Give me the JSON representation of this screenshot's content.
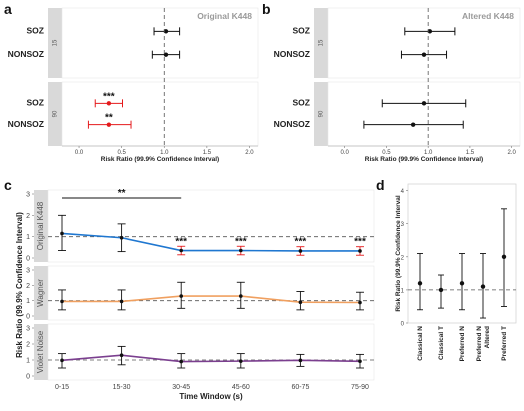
{
  "panel_labels": {
    "a": "a",
    "b": "b",
    "c": "c",
    "d": "d"
  },
  "chart_data": [
    {
      "id": "a",
      "type": "scatter",
      "subtype": "forest",
      "inset_title": "Original K448",
      "xlabel": "Risk Ratio (99.9% Confidence Interval)",
      "xlim": [
        -0.2,
        2.1
      ],
      "xticks": [
        "0.0",
        "0.5",
        "1.0",
        "1.5",
        "2.0"
      ],
      "reference_line": 1.0,
      "facets": [
        {
          "strip": "15",
          "rows": [
            {
              "label": "SOZ",
              "est": 1.02,
              "lo": 0.88,
              "hi": 1.18,
              "sig": "",
              "color": "#111111"
            },
            {
              "label": "NONSOZ",
              "est": 1.02,
              "lo": 0.86,
              "hi": 1.18,
              "sig": "",
              "color": "#111111"
            }
          ]
        },
        {
          "strip": "90",
          "rows": [
            {
              "label": "SOZ",
              "est": 0.35,
              "lo": 0.19,
              "hi": 0.51,
              "sig": "***",
              "color": "#e41a1c"
            },
            {
              "label": "NONSOZ",
              "est": 0.35,
              "lo": 0.11,
              "hi": 0.61,
              "sig": "**",
              "color": "#e41a1c"
            }
          ]
        }
      ]
    },
    {
      "id": "b",
      "type": "scatter",
      "subtype": "forest",
      "inset_title": "Altered K448",
      "xlabel": "Risk Ratio (99.9% Confidence Interval)",
      "xlim": [
        -0.2,
        2.1
      ],
      "xticks": [
        "0.0",
        "0.5",
        "1.0",
        "1.5",
        "2.0"
      ],
      "reference_line": 1.0,
      "facets": [
        {
          "strip": "15",
          "rows": [
            {
              "label": "SOZ",
              "est": 1.02,
              "lo": 0.72,
              "hi": 1.32,
              "sig": "",
              "color": "#111111"
            },
            {
              "label": "NONSOZ",
              "est": 0.95,
              "lo": 0.68,
              "hi": 1.22,
              "sig": "",
              "color": "#111111"
            }
          ]
        },
        {
          "strip": "90",
          "rows": [
            {
              "label": "SOZ",
              "est": 0.95,
              "lo": 0.45,
              "hi": 1.45,
              "sig": "",
              "color": "#111111"
            },
            {
              "label": "NONSOZ",
              "est": 0.82,
              "lo": 0.23,
              "hi": 1.42,
              "sig": "",
              "color": "#111111"
            }
          ]
        }
      ]
    },
    {
      "id": "c",
      "type": "line",
      "xlabel": "Time Window (s)",
      "ylabel": "Risk Ratio (99.9% Confidence Interval)",
      "categories": [
        "0-15",
        "15-30",
        "30-45",
        "45-60",
        "60-75",
        "75-90"
      ],
      "ylim": [
        0,
        3
      ],
      "yticks": [
        "0",
        "1",
        "2",
        "3"
      ],
      "reference_line": 1.0,
      "bracket": {
        "from": "0-15",
        "to": "30-45",
        "label": "**"
      },
      "facets": [
        {
          "strip": "Original K448",
          "color": "#1f77d0",
          "values": [
            1.15,
            0.95,
            0.35,
            0.35,
            0.33,
            0.33
          ],
          "lo": [
            0.35,
            0.3,
            0.15,
            0.15,
            0.13,
            0.13
          ],
          "hi": [
            2.0,
            1.6,
            0.55,
            0.55,
            0.53,
            0.53
          ],
          "sig": [
            "",
            "",
            "***",
            "***",
            "***",
            "***"
          ],
          "ci_colors": [
            "#111111",
            "#111111",
            "#e41a1c",
            "#e41a1c",
            "#e41a1c",
            "#e41a1c"
          ]
        },
        {
          "strip": "Wagner",
          "color": "#f0a060",
          "values": [
            0.95,
            0.95,
            1.3,
            1.3,
            0.9,
            0.88
          ],
          "lo": [
            0.4,
            0.4,
            0.5,
            0.5,
            0.4,
            0.4
          ],
          "hi": [
            1.7,
            1.7,
            2.2,
            2.2,
            1.6,
            1.55
          ],
          "sig": [
            "",
            "",
            "",
            "",
            "",
            ""
          ],
          "ci_colors": [
            "#111111",
            "#111111",
            "#111111",
            "#111111",
            "#111111",
            "#111111"
          ]
        },
        {
          "strip": "Violet Noise",
          "color": "#7b3f8f",
          "values": [
            0.98,
            1.3,
            0.9,
            0.93,
            0.98,
            0.92
          ],
          "lo": [
            0.5,
            0.7,
            0.5,
            0.5,
            0.6,
            0.5
          ],
          "hi": [
            1.4,
            1.85,
            1.4,
            1.4,
            1.35,
            1.35
          ],
          "sig": [
            "",
            "",
            "",
            "",
            "",
            ""
          ],
          "ci_colors": [
            "#111111",
            "#111111",
            "#111111",
            "#111111",
            "#111111",
            "#111111"
          ]
        }
      ]
    },
    {
      "id": "d",
      "type": "scatter",
      "subtype": "error-bar",
      "ylabel": "Risk Ratio (99.9% Confidence Interval",
      "categories": [
        "Classical N",
        "Classical T",
        "Preferred N",
        "Preferred N Altered",
        "Preferred T"
      ],
      "category_lines": [
        [
          "Classical N"
        ],
        [
          "Classical T"
        ],
        [
          "Preferred N"
        ],
        [
          "Preferred N",
          "Altered"
        ],
        [
          "Preferred T"
        ]
      ],
      "ylim": [
        0,
        4.2
      ],
      "yticks": [
        "0",
        "1",
        "2",
        "3",
        "4"
      ],
      "reference_line": 1.0,
      "values": [
        1.2,
        1.0,
        1.2,
        1.1,
        2.0
      ],
      "lo": [
        0.4,
        0.45,
        0.4,
        0.15,
        0.5
      ],
      "hi": [
        2.1,
        1.45,
        2.1,
        2.1,
        3.45
      ]
    }
  ]
}
